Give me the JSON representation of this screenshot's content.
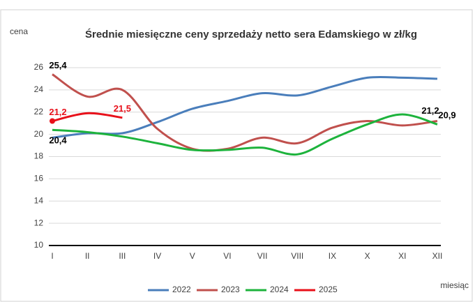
{
  "chart_data": {
    "type": "line",
    "title": "Średnie miesięczne ceny sprzedaży netto sera Edamskiego  w zł/kg",
    "y_label": "cena",
    "x_label": "miesiąc",
    "categories": [
      "I",
      "II",
      "III",
      "IV",
      "V",
      "VI",
      "VII",
      "VIII",
      "IX",
      "X",
      "XI",
      "XII"
    ],
    "series": [
      {
        "name": "2022",
        "color": "#4a7ebb",
        "values": [
          19.7,
          20.1,
          20.1,
          21.1,
          22.3,
          23.0,
          23.7,
          23.5,
          24.3,
          25.1,
          25.1,
          25.0
        ]
      },
      {
        "name": "2023",
        "color": "#c0504d",
        "values": [
          25.4,
          23.4,
          24.0,
          20.5,
          18.7,
          18.7,
          19.7,
          19.2,
          20.6,
          21.2,
          20.8,
          21.2
        ],
        "value_labels": [
          "25,4",
          null,
          null,
          null,
          null,
          null,
          null,
          null,
          null,
          null,
          null,
          "21,2"
        ]
      },
      {
        "name": "2024",
        "color": "#1db33c",
        "values": [
          20.4,
          20.2,
          19.8,
          19.2,
          18.6,
          18.6,
          18.8,
          18.2,
          19.6,
          20.9,
          21.8,
          20.9
        ],
        "value_labels": [
          "20,4",
          null,
          null,
          null,
          null,
          null,
          null,
          null,
          null,
          null,
          null,
          "20,9"
        ]
      },
      {
        "name": "2025",
        "color": "#e8101a",
        "values": [
          21.2,
          21.9,
          21.5,
          null,
          null,
          null,
          null,
          null,
          null,
          null,
          null,
          null
        ],
        "value_labels": [
          "21,2",
          null,
          "21,5",
          null,
          null,
          null,
          null,
          null,
          null,
          null,
          null,
          null
        ]
      }
    ],
    "ylim": [
      10,
      26
    ],
    "yticks": [
      10,
      12,
      14,
      16,
      18,
      20,
      22,
      24,
      26
    ],
    "grid": true,
    "legend": "bottom"
  }
}
